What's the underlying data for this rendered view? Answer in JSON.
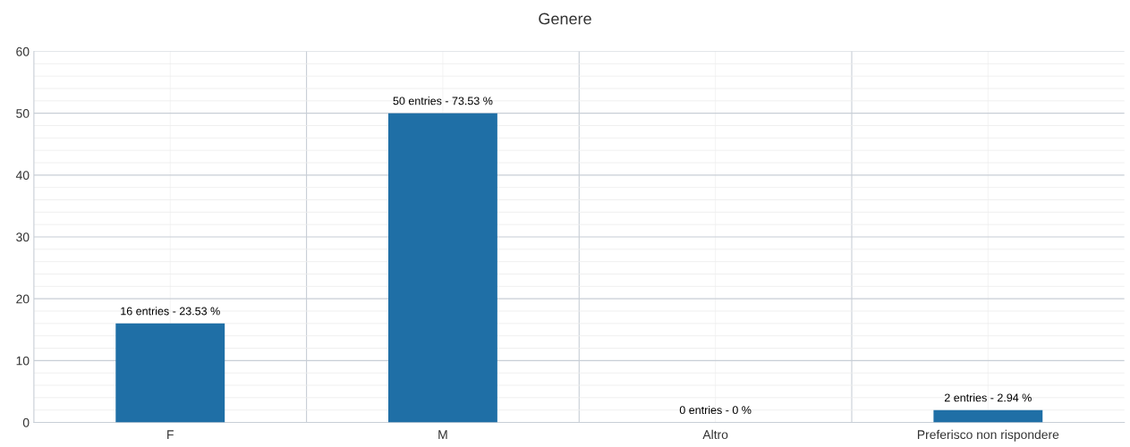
{
  "chart_data": {
    "type": "bar",
    "title": "Genere",
    "categories": [
      "F",
      "M",
      "Altro",
      "Preferisco non rispondere"
    ],
    "values": [
      16,
      50,
      0,
      2
    ],
    "value_labels": [
      "16 entries - 23.53 %",
      "50 entries - 73.53 %",
      "0 entries - 0 %",
      "2 entries - 2.94 %"
    ],
    "color": "#1f6fa6",
    "ylim": [
      0,
      60
    ],
    "yticks": [
      0,
      10,
      20,
      30,
      40,
      50,
      60
    ],
    "grid": true,
    "legend": false
  }
}
